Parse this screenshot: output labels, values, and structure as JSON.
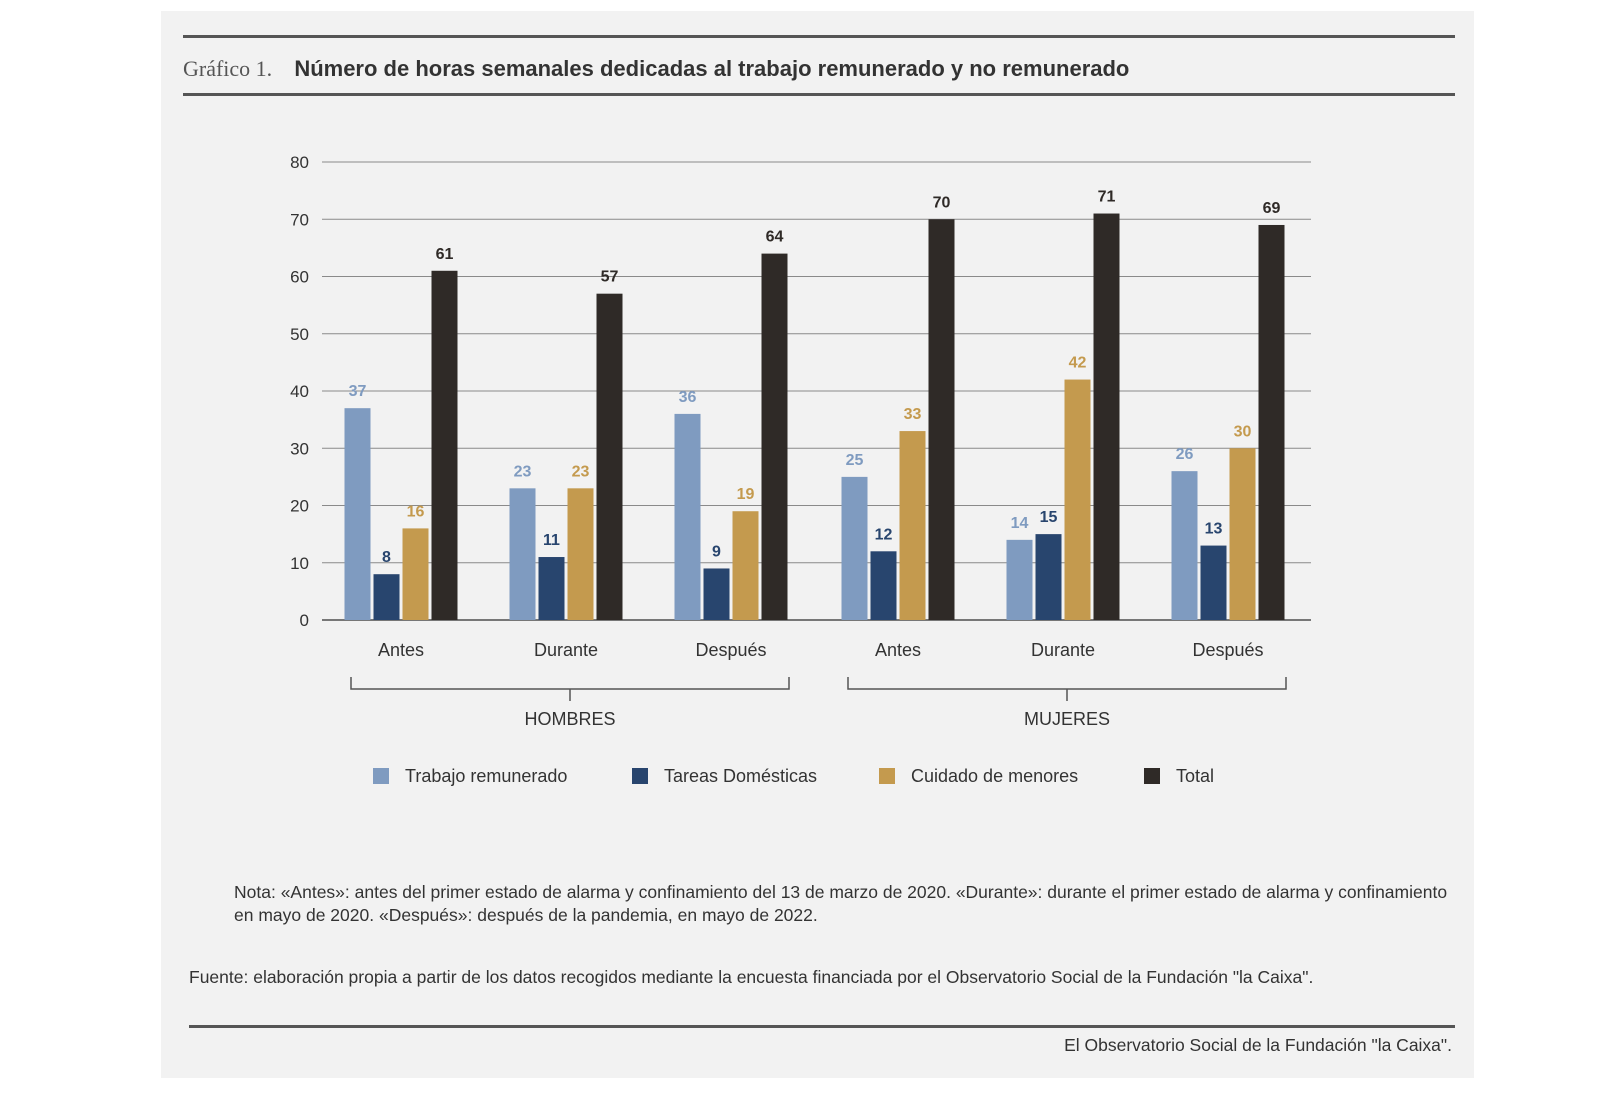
{
  "header": {
    "prefix": "Gráfico 1.",
    "title": "Número de horas semanales dedicadas al trabajo remunerado y no remunerado"
  },
  "chart_data": {
    "type": "bar",
    "categories": [
      "Antes",
      "Durante",
      "Después",
      "Antes",
      "Durante",
      "Después"
    ],
    "groups": [
      {
        "label": "HOMBRES",
        "categories": [
          0,
          1,
          2
        ]
      },
      {
        "label": "MUJERES",
        "categories": [
          3,
          4,
          5
        ]
      }
    ],
    "series": [
      {
        "name": "Trabajo remunerado",
        "color": "#7f9bc0",
        "label_color": "#7f9bc0",
        "values": [
          37,
          23,
          36,
          25,
          14,
          26
        ]
      },
      {
        "name": "Tareas Domésticas",
        "color": "#28456e",
        "label_color": "#28456e",
        "values": [
          8,
          11,
          9,
          12,
          15,
          13
        ]
      },
      {
        "name": "Cuidado de menores",
        "color": "#c49a4e",
        "label_color": "#c49a4e",
        "values": [
          16,
          23,
          19,
          33,
          42,
          30
        ]
      },
      {
        "name": "Total",
        "color": "#2f2a27",
        "label_color": "#2f2a27",
        "values": [
          61,
          57,
          64,
          70,
          71,
          69
        ]
      }
    ],
    "ylim": [
      0,
      80
    ],
    "yticks": [
      0,
      10,
      20,
      30,
      40,
      50,
      60,
      70,
      80
    ],
    "grid": true,
    "legend_position": "bottom"
  },
  "note": "Nota: «Antes»: antes del primer estado de alarma y confinamiento del 13 de marzo de 2020. «Durante»: durante el primer estado de alarma y confinamiento en mayo de 2020. «Después»: después de la pandemia, en mayo de 2022.",
  "source": "Fuente: elaboración propia a partir de los datos recogidos mediante la encuesta financiada por el Observatorio Social de la Fundación \"la Caixa\".",
  "credit": "El Observatorio Social de la Fundación \"la Caixa\"."
}
